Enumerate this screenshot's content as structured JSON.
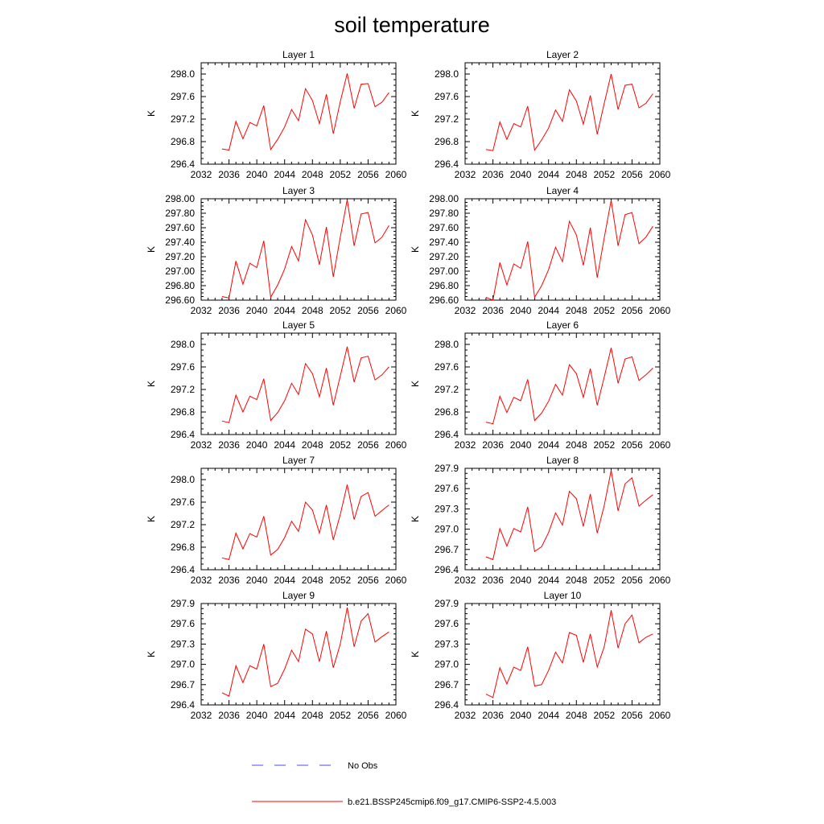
{
  "figure": {
    "title": "soil temperature"
  },
  "legend": {
    "entries": [
      {
        "label": "No Obs",
        "color": "#4a4aff",
        "style": "dashed"
      },
      {
        "label": "b.e21.BSSP245cmip6.f09_g17.CMIP6-SSP2-4.5.003",
        "color": "#ff0000",
        "style": "solid"
      }
    ]
  },
  "chart_data": [
    {
      "type": "line",
      "title": "Layer 1",
      "ylabel": "K",
      "xlim": [
        2032,
        2060
      ],
      "ylim": [
        296.4,
        298.2
      ],
      "xticks": [
        2032,
        2036,
        2040,
        2044,
        2048,
        2052,
        2056,
        2060
      ],
      "yticks": [
        296.4,
        296.8,
        297.2,
        297.6,
        298.0
      ],
      "ytick_labels": [
        "296.4",
        "296.8",
        "297.2",
        "297.6",
        "298.0"
      ],
      "series": [
        {
          "color": "#ff0000",
          "x": [
            2035,
            2036,
            2037,
            2038,
            2039,
            2040,
            2041,
            2042,
            2043,
            2044,
            2045,
            2046,
            2047,
            2048,
            2049,
            2050,
            2051,
            2052,
            2053,
            2054,
            2055,
            2056,
            2057,
            2058,
            2059
          ],
          "values": [
            296.67,
            296.65,
            297.16,
            296.85,
            297.14,
            297.08,
            297.44,
            296.66,
            296.84,
            297.06,
            297.37,
            297.17,
            297.74,
            297.53,
            297.12,
            297.64,
            296.94,
            297.51,
            298.01,
            297.39,
            297.82,
            297.83,
            297.42,
            297.5,
            297.67
          ]
        }
      ]
    },
    {
      "type": "line",
      "title": "Layer 2",
      "ylabel": "K",
      "xlim": [
        2032,
        2060
      ],
      "ylim": [
        296.4,
        298.2
      ],
      "xticks": [
        2032,
        2036,
        2040,
        2044,
        2048,
        2052,
        2056,
        2060
      ],
      "yticks": [
        296.4,
        296.8,
        297.2,
        297.6,
        298.0
      ],
      "ytick_labels": [
        "296.4",
        "296.8",
        "297.2",
        "297.6",
        "298.0"
      ],
      "series": [
        {
          "color": "#ff0000",
          "x": [
            2035,
            2036,
            2037,
            2038,
            2039,
            2040,
            2041,
            2042,
            2043,
            2044,
            2045,
            2046,
            2047,
            2048,
            2049,
            2050,
            2051,
            2052,
            2053,
            2054,
            2055,
            2056,
            2057,
            2058,
            2059
          ],
          "values": [
            296.66,
            296.64,
            297.15,
            296.84,
            297.12,
            297.06,
            297.43,
            296.65,
            296.83,
            297.04,
            297.36,
            297.16,
            297.72,
            297.52,
            297.11,
            297.62,
            296.93,
            297.48,
            298.0,
            297.37,
            297.8,
            297.82,
            297.4,
            297.48,
            297.65
          ]
        }
      ]
    },
    {
      "type": "line",
      "title": "Layer 3",
      "ylabel": "K",
      "xlim": [
        2032,
        2060
      ],
      "ylim": [
        296.6,
        298.0
      ],
      "xticks": [
        2032,
        2036,
        2040,
        2044,
        2048,
        2052,
        2056,
        2060
      ],
      "yticks": [
        296.6,
        296.8,
        297.0,
        297.2,
        297.4,
        297.6,
        297.8,
        298.0
      ],
      "ytick_labels": [
        "296.60",
        "296.80",
        "297.00",
        "297.20",
        "297.40",
        "297.60",
        "297.80",
        "298.00"
      ],
      "series": [
        {
          "color": "#ff0000",
          "x": [
            2035,
            2036,
            2037,
            2038,
            2039,
            2040,
            2041,
            2042,
            2043,
            2044,
            2045,
            2046,
            2047,
            2048,
            2049,
            2050,
            2051,
            2052,
            2053,
            2054,
            2055,
            2056,
            2057,
            2058,
            2059
          ],
          "values": [
            296.65,
            296.63,
            297.14,
            296.82,
            297.11,
            297.05,
            297.42,
            296.64,
            296.81,
            297.03,
            297.34,
            297.14,
            297.71,
            297.5,
            297.09,
            297.61,
            296.92,
            297.47,
            297.99,
            297.35,
            297.79,
            297.81,
            297.39,
            297.47,
            297.63
          ]
        }
      ]
    },
    {
      "type": "line",
      "title": "Layer 4",
      "ylabel": "K",
      "xlim": [
        2032,
        2060
      ],
      "ylim": [
        296.6,
        298.0
      ],
      "xticks": [
        2032,
        2036,
        2040,
        2044,
        2048,
        2052,
        2056,
        2060
      ],
      "yticks": [
        296.6,
        296.8,
        297.0,
        297.2,
        297.4,
        297.6,
        297.8,
        298.0
      ],
      "ytick_labels": [
        "296.60",
        "296.80",
        "297.00",
        "297.20",
        "297.40",
        "297.60",
        "297.80",
        "298.00"
      ],
      "series": [
        {
          "color": "#ff0000",
          "x": [
            2035,
            2036,
            2037,
            2038,
            2039,
            2040,
            2041,
            2042,
            2043,
            2044,
            2045,
            2046,
            2047,
            2048,
            2049,
            2050,
            2051,
            2052,
            2053,
            2054,
            2055,
            2056,
            2057,
            2058,
            2059
          ],
          "values": [
            296.64,
            296.6,
            297.12,
            296.81,
            297.1,
            297.04,
            297.41,
            296.64,
            296.8,
            297.02,
            297.33,
            297.13,
            297.69,
            297.5,
            297.08,
            297.6,
            296.91,
            297.46,
            297.98,
            297.35,
            297.78,
            297.81,
            297.38,
            297.47,
            297.62
          ]
        }
      ]
    },
    {
      "type": "line",
      "title": "Layer 5",
      "ylabel": "K",
      "xlim": [
        2032,
        2060
      ],
      "ylim": [
        296.4,
        298.2
      ],
      "xticks": [
        2032,
        2036,
        2040,
        2044,
        2048,
        2052,
        2056,
        2060
      ],
      "yticks": [
        296.4,
        296.8,
        297.2,
        297.6,
        298.0
      ],
      "ytick_labels": [
        "296.4",
        "296.8",
        "297.2",
        "297.6",
        "298.0"
      ],
      "series": [
        {
          "color": "#ff0000",
          "x": [
            2035,
            2036,
            2037,
            2038,
            2039,
            2040,
            2041,
            2042,
            2043,
            2044,
            2045,
            2046,
            2047,
            2048,
            2049,
            2050,
            2051,
            2052,
            2053,
            2054,
            2055,
            2056,
            2057,
            2058,
            2059
          ],
          "values": [
            296.64,
            296.61,
            297.1,
            296.8,
            297.08,
            297.02,
            297.39,
            296.65,
            296.79,
            297.0,
            297.31,
            297.11,
            297.66,
            297.48,
            297.07,
            297.58,
            296.92,
            297.44,
            297.96,
            297.33,
            297.76,
            297.79,
            297.37,
            297.46,
            297.6
          ]
        }
      ]
    },
    {
      "type": "line",
      "title": "Layer 6",
      "ylabel": "K",
      "xlim": [
        2032,
        2060
      ],
      "ylim": [
        296.4,
        298.2
      ],
      "xticks": [
        2032,
        2036,
        2040,
        2044,
        2048,
        2052,
        2056,
        2060
      ],
      "yticks": [
        296.4,
        296.8,
        297.2,
        297.6,
        298.0
      ],
      "ytick_labels": [
        "296.4",
        "296.8",
        "297.2",
        "297.6",
        "298.0"
      ],
      "series": [
        {
          "color": "#ff0000",
          "x": [
            2035,
            2036,
            2037,
            2038,
            2039,
            2040,
            2041,
            2042,
            2043,
            2044,
            2045,
            2046,
            2047,
            2048,
            2049,
            2050,
            2051,
            2052,
            2053,
            2054,
            2055,
            2056,
            2057,
            2058,
            2059
          ],
          "values": [
            296.62,
            296.59,
            297.08,
            296.79,
            297.06,
            297.0,
            297.38,
            296.65,
            296.78,
            296.99,
            297.29,
            297.1,
            297.64,
            297.48,
            297.06,
            297.57,
            296.92,
            297.42,
            297.94,
            297.31,
            297.74,
            297.78,
            297.36,
            297.46,
            297.58
          ]
        }
      ]
    },
    {
      "type": "line",
      "title": "Layer 7",
      "ylabel": "K",
      "xlim": [
        2032,
        2060
      ],
      "ylim": [
        296.4,
        298.2
      ],
      "xticks": [
        2032,
        2036,
        2040,
        2044,
        2048,
        2052,
        2056,
        2060
      ],
      "yticks": [
        296.4,
        296.8,
        297.2,
        297.6,
        298.0
      ],
      "ytick_labels": [
        "296.4",
        "296.8",
        "297.2",
        "297.6",
        "298.0"
      ],
      "series": [
        {
          "color": "#ff0000",
          "x": [
            2035,
            2036,
            2037,
            2038,
            2039,
            2040,
            2041,
            2042,
            2043,
            2044,
            2045,
            2046,
            2047,
            2048,
            2049,
            2050,
            2051,
            2052,
            2053,
            2054,
            2055,
            2056,
            2057,
            2058,
            2059
          ],
          "values": [
            296.61,
            296.58,
            297.05,
            296.77,
            297.04,
            296.98,
            297.35,
            296.66,
            296.76,
            296.97,
            297.26,
            297.08,
            297.6,
            297.46,
            297.05,
            297.55,
            296.93,
            297.38,
            297.91,
            297.29,
            297.7,
            297.77,
            297.35,
            297.45,
            297.55
          ]
        }
      ]
    },
    {
      "type": "line",
      "title": "Layer 8",
      "ylabel": "K",
      "xlim": [
        2032,
        2060
      ],
      "ylim": [
        296.4,
        297.9
      ],
      "xticks": [
        2032,
        2036,
        2040,
        2044,
        2048,
        2052,
        2056,
        2060
      ],
      "yticks": [
        296.4,
        296.7,
        297.0,
        297.3,
        297.6,
        297.9
      ],
      "ytick_labels": [
        "296.4",
        "296.7",
        "297.0",
        "297.3",
        "297.6",
        "297.9"
      ],
      "series": [
        {
          "color": "#ff0000",
          "x": [
            2035,
            2036,
            2037,
            2038,
            2039,
            2040,
            2041,
            2042,
            2043,
            2044,
            2045,
            2046,
            2047,
            2048,
            2049,
            2050,
            2051,
            2052,
            2053,
            2054,
            2055,
            2056,
            2057,
            2058,
            2059
          ],
          "values": [
            296.59,
            296.55,
            297.01,
            296.75,
            297.01,
            296.96,
            297.33,
            296.67,
            296.74,
            296.95,
            297.24,
            297.06,
            297.56,
            297.45,
            297.04,
            297.52,
            296.94,
            297.35,
            297.87,
            297.27,
            297.67,
            297.76,
            297.34,
            297.43,
            297.51
          ]
        }
      ]
    },
    {
      "type": "line",
      "title": "Layer 9",
      "ylabel": "K",
      "xlim": [
        2032,
        2060
      ],
      "ylim": [
        296.4,
        297.9
      ],
      "xticks": [
        2032,
        2036,
        2040,
        2044,
        2048,
        2052,
        2056,
        2060
      ],
      "yticks": [
        296.4,
        296.7,
        297.0,
        297.3,
        297.6,
        297.9
      ],
      "ytick_labels": [
        "296.4",
        "296.7",
        "297.0",
        "297.3",
        "297.6",
        "297.9"
      ],
      "series": [
        {
          "color": "#ff0000",
          "x": [
            2035,
            2036,
            2037,
            2038,
            2039,
            2040,
            2041,
            2042,
            2043,
            2044,
            2045,
            2046,
            2047,
            2048,
            2049,
            2050,
            2051,
            2052,
            2053,
            2054,
            2055,
            2056,
            2057,
            2058,
            2059
          ],
          "values": [
            296.58,
            296.53,
            296.98,
            296.73,
            296.98,
            296.93,
            297.3,
            296.67,
            296.72,
            296.93,
            297.21,
            297.04,
            297.52,
            297.45,
            297.04,
            297.49,
            296.95,
            297.3,
            297.84,
            297.26,
            297.64,
            297.75,
            297.33,
            297.41,
            297.48
          ]
        }
      ]
    },
    {
      "type": "line",
      "title": "Layer 10",
      "ylabel": "K",
      "xlim": [
        2032,
        2060
      ],
      "ylim": [
        296.4,
        297.9
      ],
      "xticks": [
        2032,
        2036,
        2040,
        2044,
        2048,
        2052,
        2056,
        2060
      ],
      "yticks": [
        296.4,
        296.7,
        297.0,
        297.3,
        297.6,
        297.9
      ],
      "ytick_labels": [
        "296.4",
        "296.7",
        "297.0",
        "297.3",
        "297.6",
        "297.9"
      ],
      "series": [
        {
          "color": "#ff0000",
          "x": [
            2035,
            2036,
            2037,
            2038,
            2039,
            2040,
            2041,
            2042,
            2043,
            2044,
            2045,
            2046,
            2047,
            2048,
            2049,
            2050,
            2051,
            2052,
            2053,
            2054,
            2055,
            2056,
            2057,
            2058,
            2059
          ],
          "values": [
            296.56,
            296.51,
            296.95,
            296.71,
            296.96,
            296.91,
            297.26,
            296.68,
            296.7,
            296.91,
            297.18,
            297.02,
            297.47,
            297.43,
            297.03,
            297.45,
            296.96,
            297.26,
            297.8,
            297.24,
            297.6,
            297.73,
            297.32,
            297.4,
            297.45
          ]
        }
      ]
    }
  ]
}
